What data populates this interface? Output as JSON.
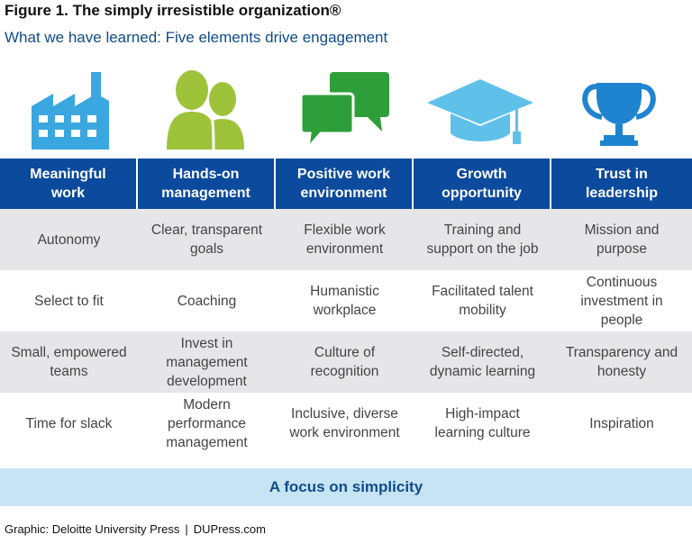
{
  "title": "Figure 1. The simply irresistible organization®",
  "subtitle": "What we have learned: Five elements drive engagement",
  "icons": [
    {
      "name": "factory-icon",
      "color": "#3aa7e0"
    },
    {
      "name": "people-icon",
      "color": "#9ec33b"
    },
    {
      "name": "speech-bubbles-icon",
      "color": "#2e9e3a"
    },
    {
      "name": "graduation-cap-icon",
      "color": "#5fc1ea"
    },
    {
      "name": "trophy-icon",
      "color": "#1e84cf"
    }
  ],
  "columns": [
    {
      "header": [
        "Meaningful",
        "work"
      ],
      "items": [
        [
          "Autonomy"
        ],
        [
          "Select to fit"
        ],
        [
          "Small, empowered",
          "teams"
        ],
        [
          "Time for slack"
        ]
      ]
    },
    {
      "header": [
        "Hands-on",
        "management"
      ],
      "items": [
        [
          "Clear, transparent",
          "goals"
        ],
        [
          "Coaching"
        ],
        [
          "Invest in",
          "management",
          "development"
        ],
        [
          "Modern",
          "performance",
          "management"
        ]
      ]
    },
    {
      "header": [
        "Positive work",
        "environment"
      ],
      "items": [
        [
          "Flexible work",
          "environment"
        ],
        [
          "Humanistic",
          "workplace"
        ],
        [
          "Culture of",
          "recognition"
        ],
        [
          "Inclusive, diverse",
          "work environment"
        ]
      ]
    },
    {
      "header": [
        "Growth",
        "opportunity"
      ],
      "items": [
        [
          "Training and",
          "support on the job"
        ],
        [
          "Facilitated talent",
          "mobility"
        ],
        [
          "Self-directed,",
          "dynamic learning"
        ],
        [
          "High-impact",
          "learning culture"
        ]
      ]
    },
    {
      "header": [
        "Trust in",
        "leadership"
      ],
      "items": [
        [
          "Mission and",
          "purpose"
        ],
        [
          "Continuous",
          "investment in",
          "people"
        ],
        [
          "Transparency and",
          "honesty"
        ],
        [
          "Inspiration"
        ]
      ]
    }
  ],
  "footer_bar": "A focus on simplicity",
  "source": {
    "left": "Graphic: Deloitte University Press",
    "separator": "|",
    "right": "DUPress.com"
  },
  "colors": {
    "header_bg": "#0b4a9c",
    "row_grey": "#e6e6e8",
    "footer_bg": "#c7e4f4",
    "subtitle": "#0f4c8a"
  }
}
